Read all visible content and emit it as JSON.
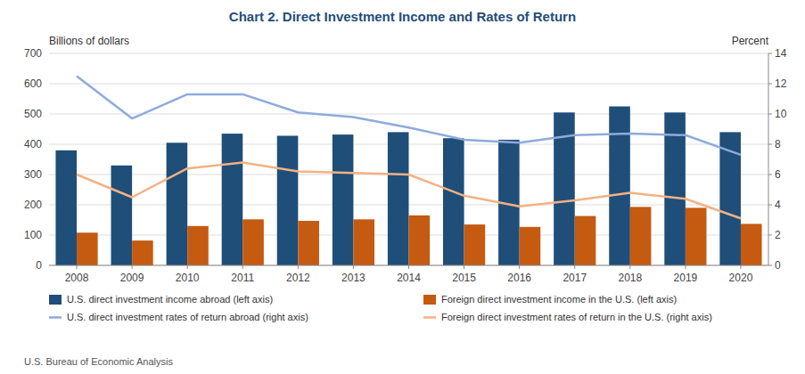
{
  "chart_data": {
    "type": "bar",
    "title": "Chart 2. Direct Investment Income and Rates of Return",
    "ylabel": "Billions of dollars",
    "y2label": "Percent",
    "source": "U.S. Bureau of Economic Analysis",
    "categories": [
      "2008",
      "2009",
      "2010",
      "2011",
      "2012",
      "2013",
      "2014",
      "2015",
      "2016",
      "2017",
      "2018",
      "2019",
      "2020"
    ],
    "series": [
      {
        "name": "U.S. direct investment income abroad (left axis)",
        "type": "bar",
        "color": "#1F4E79",
        "values": [
          380,
          330,
          405,
          435,
          428,
          432,
          440,
          420,
          415,
          505,
          525,
          505,
          440
        ]
      },
      {
        "name": "Foreign direct investment income in the U.S. (left axis)",
        "type": "bar",
        "color": "#C55A11",
        "values": [
          108,
          82,
          130,
          152,
          147,
          152,
          165,
          135,
          127,
          163,
          193,
          190,
          137
        ]
      },
      {
        "name": "U.S. direct investment rates of return abroad (right axis)",
        "type": "line",
        "axis": "y2",
        "color": "#8FAADC",
        "values": [
          12.5,
          9.7,
          11.3,
          11.3,
          10.1,
          9.8,
          9.1,
          8.3,
          8.1,
          8.6,
          8.7,
          8.6,
          7.3
        ]
      },
      {
        "name": "Foreign direct investment rates of return in the U.S. (right axis)",
        "type": "line",
        "axis": "y2",
        "color": "#F4B183",
        "values": [
          6.0,
          4.5,
          6.4,
          6.8,
          6.2,
          6.1,
          6.0,
          4.6,
          3.9,
          4.3,
          4.8,
          4.4,
          3.1
        ]
      }
    ],
    "ylim": [
      0,
      700
    ],
    "yticks": [
      0,
      100,
      200,
      300,
      400,
      500,
      600,
      700
    ],
    "y2lim": [
      0,
      14
    ],
    "y2ticks": [
      0,
      2,
      4,
      6,
      8,
      10,
      12,
      14
    ],
    "grid": true,
    "legend": "bottom"
  }
}
